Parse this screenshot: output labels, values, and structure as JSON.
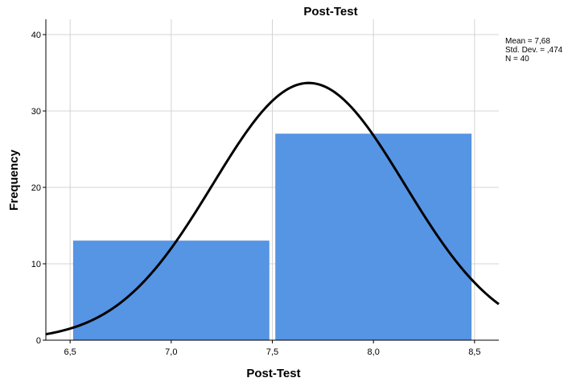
{
  "chart_data": {
    "type": "bar",
    "title": "Post-Test",
    "xlabel": "Post-Test",
    "ylabel": "Frequency",
    "xlim": [
      6.38,
      8.62
    ],
    "ylim": [
      0,
      42
    ],
    "x_ticks": [
      6.5,
      7.0,
      7.5,
      8.0,
      8.5
    ],
    "x_tick_labels": [
      "6,5",
      "7,0",
      "7,5",
      "8,0",
      "8,5"
    ],
    "y_ticks": [
      0,
      10,
      20,
      30,
      40
    ],
    "y_tick_labels": [
      "0",
      "10",
      "20",
      "30",
      "40"
    ],
    "bins": [
      {
        "start": 6.5,
        "end": 7.5,
        "value": 13
      },
      {
        "start": 7.5,
        "end": 8.5,
        "value": 27
      }
    ],
    "bar_color": "#5694e4",
    "grid": true,
    "normal_curve": {
      "mean": 7.68,
      "std": 0.474,
      "n": 40,
      "bin_width": 1.0,
      "color": "#000000"
    },
    "legend": {
      "position": "top-right",
      "lines": [
        "Mean = 7,68",
        "Std. Dev. = ,474",
        "N = 40"
      ]
    }
  }
}
